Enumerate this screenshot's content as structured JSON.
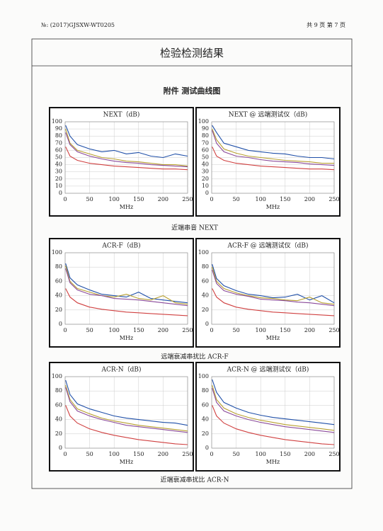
{
  "header": {
    "number": "№: (2017)GJSXW-WT0205",
    "page": "共 9 页 第 7 页"
  },
  "title": "检验检测结果",
  "subtitle": "附件 测试曲线图",
  "captions": [
    "近端串音 NEXT",
    "远端衰减串扰比 ACR-F",
    "近端衰减串扰比 ACR-N"
  ],
  "chart_data": [
    {
      "type": "line",
      "title": "NEXT（dB)",
      "x_label": "MHz",
      "xlim": [
        0,
        250
      ],
      "ylim": [
        0,
        100
      ],
      "xticks": [
        0,
        50,
        100,
        150,
        200,
        250
      ],
      "yticks": [
        0,
        10,
        20,
        30,
        40,
        50,
        60,
        70,
        80,
        90,
        100
      ],
      "grid": true,
      "x": [
        1,
        10,
        25,
        50,
        75,
        100,
        125,
        150,
        175,
        200,
        225,
        250
      ],
      "series": [
        {
          "color": "#1f4fa8",
          "values": [
            95,
            80,
            68,
            62,
            58,
            60,
            55,
            57,
            52,
            50,
            55,
            52
          ]
        },
        {
          "color": "#b8a030",
          "values": [
            90,
            70,
            60,
            55,
            50,
            48,
            45,
            44,
            42,
            40,
            40,
            38
          ]
        },
        {
          "color": "#8a4a9a",
          "values": [
            85,
            68,
            58,
            52,
            48,
            45,
            43,
            42,
            40,
            39,
            38,
            37
          ]
        },
        {
          "color": "#d04040",
          "values": [
            65,
            52,
            46,
            42,
            40,
            38,
            37,
            36,
            35,
            34,
            34,
            33
          ]
        }
      ]
    },
    {
      "type": "line",
      "title": "NEXT @ 远端测试仪（dB)",
      "x_label": "MHz",
      "xlim": [
        0,
        250
      ],
      "ylim": [
        0,
        100
      ],
      "xticks": [
        0,
        50,
        100,
        150,
        200,
        250
      ],
      "yticks": [
        0,
        10,
        20,
        30,
        40,
        50,
        60,
        70,
        80,
        90,
        100
      ],
      "grid": true,
      "x": [
        1,
        10,
        25,
        50,
        75,
        100,
        125,
        150,
        175,
        200,
        225,
        250
      ],
      "series": [
        {
          "color": "#1f4fa8",
          "values": [
            95,
            85,
            70,
            65,
            60,
            58,
            56,
            55,
            52,
            50,
            50,
            48
          ]
        },
        {
          "color": "#b8a030",
          "values": [
            90,
            75,
            62,
            56,
            52,
            50,
            48,
            46,
            45,
            44,
            42,
            42
          ]
        },
        {
          "color": "#8a4a9a",
          "values": [
            88,
            70,
            58,
            52,
            50,
            47,
            45,
            44,
            43,
            41,
            40,
            39
          ]
        },
        {
          "color": "#d04040",
          "values": [
            65,
            52,
            46,
            42,
            40,
            38,
            37,
            36,
            35,
            34,
            34,
            33
          ]
        }
      ]
    },
    {
      "type": "line",
      "title": "ACR-F（dB)",
      "x_label": "MHz",
      "xlim": [
        0,
        250
      ],
      "ylim": [
        0,
        100
      ],
      "xticks": [
        0,
        50,
        100,
        150,
        200,
        250
      ],
      "yticks": [
        0,
        20,
        40,
        60,
        80,
        100
      ],
      "grid": true,
      "x": [
        1,
        10,
        25,
        50,
        75,
        100,
        125,
        150,
        175,
        200,
        225,
        250
      ],
      "series": [
        {
          "color": "#1f4fa8",
          "values": [
            85,
            65,
            55,
            48,
            42,
            40,
            38,
            45,
            36,
            34,
            32,
            30
          ]
        },
        {
          "color": "#b8a030",
          "values": [
            82,
            60,
            50,
            45,
            40,
            38,
            42,
            36,
            34,
            40,
            30,
            28
          ]
        },
        {
          "color": "#8a4a9a",
          "values": [
            78,
            58,
            48,
            42,
            40,
            36,
            35,
            34,
            32,
            30,
            28,
            26
          ]
        },
        {
          "color": "#d04040",
          "values": [
            50,
            38,
            30,
            24,
            21,
            19,
            17,
            16,
            15,
            14,
            13,
            12
          ]
        }
      ]
    },
    {
      "type": "line",
      "title": "ACR-F @ 远端测试仪（dB)",
      "x_label": "MHz",
      "xlim": [
        0,
        250
      ],
      "ylim": [
        0,
        100
      ],
      "xticks": [
        0,
        50,
        100,
        150,
        200,
        250
      ],
      "yticks": [
        0,
        20,
        40,
        60,
        80,
        100
      ],
      "grid": true,
      "x": [
        1,
        10,
        25,
        50,
        75,
        100,
        125,
        150,
        175,
        200,
        225,
        250
      ],
      "series": [
        {
          "color": "#1f4fa8",
          "values": [
            84,
            64,
            54,
            47,
            42,
            40,
            37,
            38,
            42,
            34,
            40,
            30
          ]
        },
        {
          "color": "#b8a030",
          "values": [
            80,
            60,
            50,
            44,
            40,
            37,
            36,
            34,
            33,
            38,
            30,
            28
          ]
        },
        {
          "color": "#8a4a9a",
          "values": [
            76,
            57,
            47,
            42,
            39,
            35,
            34,
            33,
            31,
            30,
            28,
            26
          ]
        },
        {
          "color": "#d04040",
          "values": [
            50,
            38,
            30,
            24,
            21,
            19,
            17,
            16,
            15,
            14,
            13,
            12
          ]
        }
      ]
    },
    {
      "type": "line",
      "title": "ACR-N（dB)",
      "x_label": "MHz",
      "xlim": [
        0,
        250
      ],
      "ylim": [
        0,
        100
      ],
      "xticks": [
        0,
        50,
        100,
        150,
        200,
        250
      ],
      "yticks": [
        0,
        20,
        40,
        60,
        80,
        100
      ],
      "grid": true,
      "x": [
        1,
        10,
        25,
        50,
        75,
        100,
        125,
        150,
        175,
        200,
        225,
        250
      ],
      "series": [
        {
          "color": "#1f4fa8",
          "values": [
            95,
            75,
            62,
            55,
            50,
            45,
            42,
            40,
            38,
            36,
            35,
            32
          ]
        },
        {
          "color": "#b8a030",
          "values": [
            88,
            68,
            55,
            48,
            42,
            38,
            35,
            32,
            30,
            28,
            26,
            24
          ]
        },
        {
          "color": "#8a4a9a",
          "values": [
            85,
            65,
            52,
            45,
            40,
            36,
            32,
            30,
            28,
            26,
            24,
            22
          ]
        },
        {
          "color": "#d04040",
          "values": [
            60,
            45,
            35,
            27,
            22,
            18,
            15,
            12,
            10,
            8,
            6,
            5
          ]
        }
      ]
    },
    {
      "type": "line",
      "title": "ACR-N @ 远端测试仪（dB)",
      "x_label": "MHz",
      "xlim": [
        0,
        250
      ],
      "ylim": [
        0,
        100
      ],
      "xticks": [
        0,
        50,
        100,
        150,
        200,
        250
      ],
      "yticks": [
        0,
        20,
        40,
        60,
        80,
        100
      ],
      "grid": true,
      "x": [
        1,
        10,
        25,
        50,
        75,
        100,
        125,
        150,
        175,
        200,
        225,
        250
      ],
      "series": [
        {
          "color": "#1f4fa8",
          "values": [
            96,
            78,
            64,
            56,
            50,
            46,
            43,
            41,
            39,
            37,
            35,
            33
          ]
        },
        {
          "color": "#b8a030",
          "values": [
            88,
            68,
            56,
            48,
            43,
            39,
            36,
            33,
            31,
            29,
            27,
            25
          ]
        },
        {
          "color": "#8a4a9a",
          "values": [
            84,
            64,
            52,
            45,
            40,
            36,
            33,
            30,
            28,
            26,
            24,
            22
          ]
        },
        {
          "color": "#d04040",
          "values": [
            60,
            45,
            35,
            27,
            22,
            18,
            15,
            12,
            10,
            8,
            6,
            5
          ]
        }
      ]
    }
  ]
}
